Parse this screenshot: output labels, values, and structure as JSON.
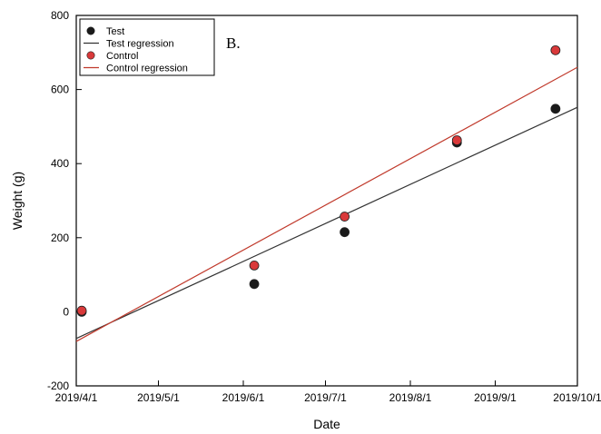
{
  "chart_data": {
    "type": "scatter",
    "panel_label": "B.",
    "xlabel": "Date",
    "ylabel": "Weight (g)",
    "xlim": [
      "2019-04-01",
      "2019-10-01"
    ],
    "ylim": [
      -200,
      800
    ],
    "x_ticks": [
      "2019-04-01",
      "2019-05-01",
      "2019-06-01",
      "2019-07-01",
      "2019-08-01",
      "2019-09-01",
      "2019-10-01"
    ],
    "x_tick_labels": [
      "2019/4/1",
      "2019/5/1",
      "2019/6/1",
      "2019/7/1",
      "2019/8/1",
      "2019/9/1",
      "2019/10/1"
    ],
    "y_ticks": [
      -200,
      0,
      200,
      400,
      600,
      800
    ],
    "y_tick_labels": [
      "-200",
      "0",
      "200",
      "400",
      "600",
      "800"
    ],
    "legend_position": "top-left",
    "grid": false,
    "series": [
      {
        "name": "Test",
        "kind": "points",
        "color": "#1a1a1a",
        "points": [
          {
            "x": "2019-04-03",
            "y": 0
          },
          {
            "x": "2019-06-05",
            "y": 75
          },
          {
            "x": "2019-07-08",
            "y": 215
          },
          {
            "x": "2019-08-18",
            "y": 457
          },
          {
            "x": "2019-09-23",
            "y": 548
          }
        ]
      },
      {
        "name": "Test regression",
        "kind": "line",
        "color": "#333333",
        "points": [
          {
            "x": "2019-04-01",
            "y": -72
          },
          {
            "x": "2019-10-01",
            "y": 552
          }
        ]
      },
      {
        "name": "Control",
        "kind": "points",
        "color": "#d9393a",
        "points": [
          {
            "x": "2019-04-03",
            "y": 3
          },
          {
            "x": "2019-06-05",
            "y": 125
          },
          {
            "x": "2019-07-08",
            "y": 257
          },
          {
            "x": "2019-08-18",
            "y": 463
          },
          {
            "x": "2019-09-23",
            "y": 706
          }
        ]
      },
      {
        "name": "Control regression",
        "kind": "line",
        "color": "#c0392b",
        "points": [
          {
            "x": "2019-04-01",
            "y": -80
          },
          {
            "x": "2019-10-01",
            "y": 660
          }
        ]
      }
    ]
  }
}
